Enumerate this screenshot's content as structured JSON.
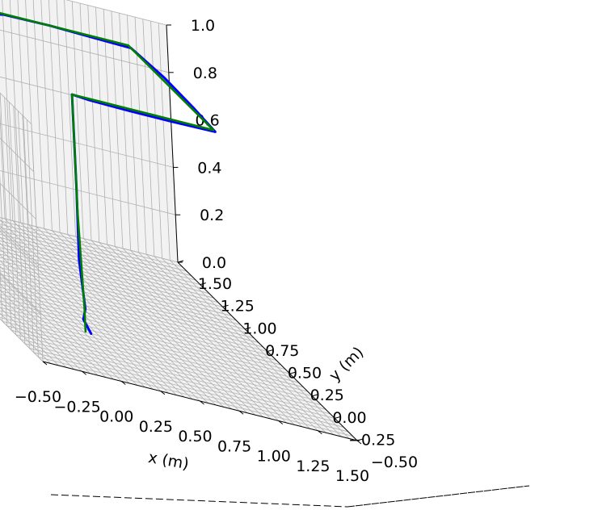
{
  "chart_data": {
    "type": "line",
    "projection": "3d",
    "xlabel": "x (m)",
    "ylabel": "y (m)",
    "zlabel": "",
    "xlim": [
      -0.5,
      1.5
    ],
    "ylim": [
      -0.5,
      1.5
    ],
    "zlim": [
      0.0,
      1.0
    ],
    "x_ticks": [
      "−0.50",
      "−0.25",
      "0.00",
      "0.25",
      "0.50",
      "0.75",
      "1.00",
      "1.25",
      "1.50"
    ],
    "y_ticks": [
      "−0.50",
      "−0.25",
      "0.00",
      "0.25",
      "0.50",
      "0.75",
      "1.00",
      "1.25",
      "1.50"
    ],
    "z_ticks": [
      "0.0",
      "0.2",
      "0.4",
      "0.6",
      "0.8",
      "1.0"
    ],
    "grid": true,
    "colors": {
      "pane": "#f2f2f2",
      "grid": "#b0b0b0",
      "series_1": "#0000ff",
      "series_2": "#008000"
    },
    "series": [
      {
        "color": "#0000ff",
        "x": [
          0.15,
          0.11,
          0.12,
          0.1,
          0.1,
          0.1,
          0.2,
          0.45,
          0.72,
          1.0,
          1.02,
          1.03,
          1.0,
          0.8,
          0.5,
          0.2,
          0.1
        ],
        "y": [
          0.1,
          0.11,
          0.1,
          0.11,
          0.1,
          0.1,
          0.08,
          0.07,
          0.07,
          0.08,
          0.35,
          0.7,
          1.02,
          1.03,
          1.05,
          1.04,
          1.0
        ],
        "z": [
          0.0,
          0.05,
          0.1,
          0.3,
          0.6,
          1.0,
          1.0,
          1.0,
          1.0,
          1.0,
          1.0,
          1.0,
          1.0,
          1.0,
          1.0,
          1.0,
          1.0
        ]
      },
      {
        "color": "#008000",
        "x": [
          0.12,
          0.12,
          0.1,
          0.1,
          0.1,
          1.0,
          1.0,
          0.1
        ],
        "y": [
          0.11,
          0.11,
          0.1,
          0.1,
          0.1,
          0.1,
          1.05,
          1.05
        ],
        "z": [
          0.0,
          0.1,
          0.5,
          0.8,
          1.0,
          1.0,
          1.0,
          1.0
        ]
      }
    ]
  }
}
